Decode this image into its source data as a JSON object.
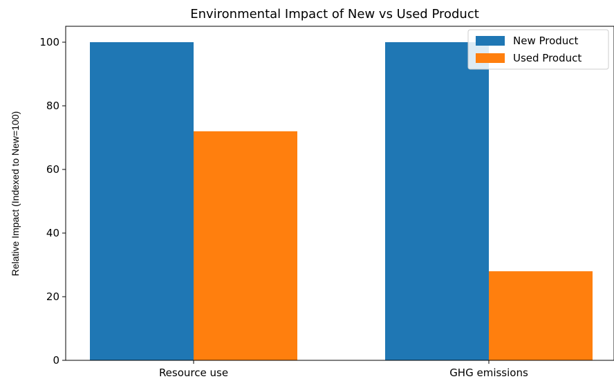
{
  "chart_data": {
    "type": "bar",
    "title": "Environmental Impact of New vs Used Product",
    "xlabel": "",
    "ylabel": "Relative Impact (Indexed to New=100)",
    "categories": [
      "Resource use",
      "GHG emissions"
    ],
    "series": [
      {
        "name": "New Product",
        "values": [
          100,
          100
        ],
        "color": "#1f77b4"
      },
      {
        "name": "Used Product",
        "values": [
          72,
          28
        ],
        "color": "#ff7f0e"
      }
    ],
    "ylim": [
      0,
      105
    ],
    "yticks": [
      0,
      20,
      40,
      60,
      80,
      100
    ],
    "grid": false,
    "legend_position": "top-right"
  }
}
